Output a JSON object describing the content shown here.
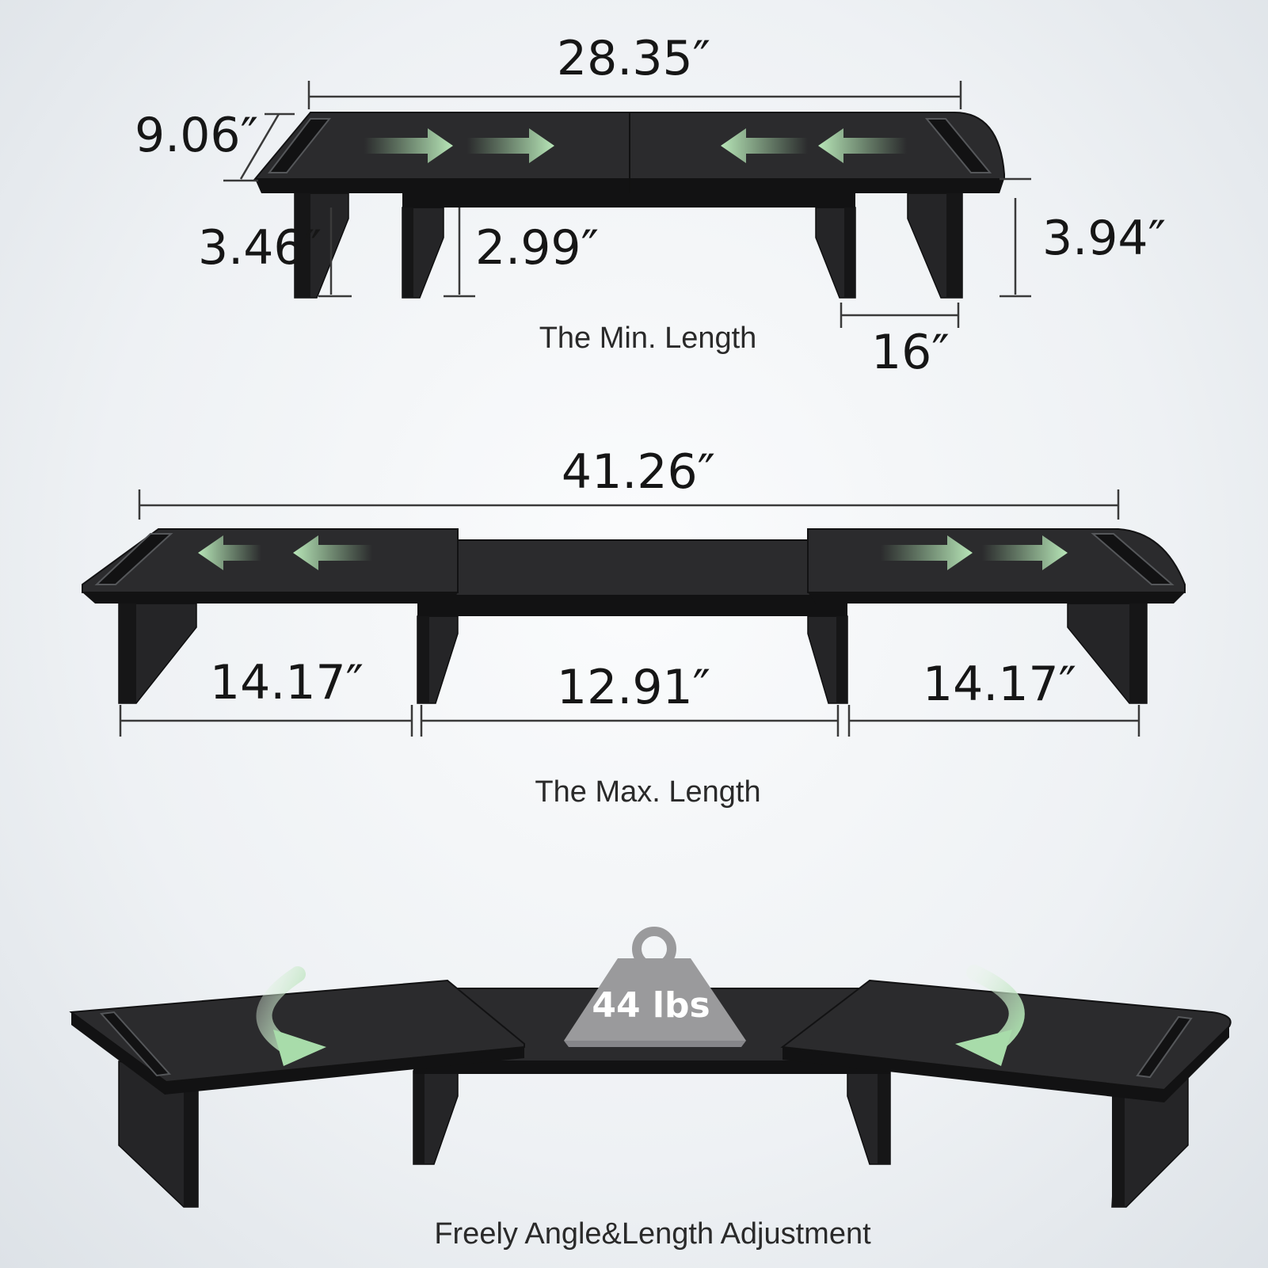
{
  "min": {
    "length": "28.35″",
    "depth": "9.06″",
    "height_outer": "3.46″",
    "height_inner": "2.99″",
    "height_right": "3.94″",
    "leg_span": "16″",
    "caption": "The Min. Length"
  },
  "max": {
    "length": "41.26″",
    "left_section": "14.17″",
    "middle_section": "12.91″",
    "right_section": "14.17″",
    "caption": "The Max. Length"
  },
  "rotate": {
    "weight": "44 lbs",
    "caption": "Freely Angle&Length Adjustment"
  },
  "colors": {
    "shelf": "#2b2b2d",
    "arrow_green": "#a8dcaa",
    "weight_gray": "#9a9a9c"
  },
  "icons": [
    "slide-arrow-icon",
    "rotate-arrow-icon",
    "weight-icon"
  ]
}
